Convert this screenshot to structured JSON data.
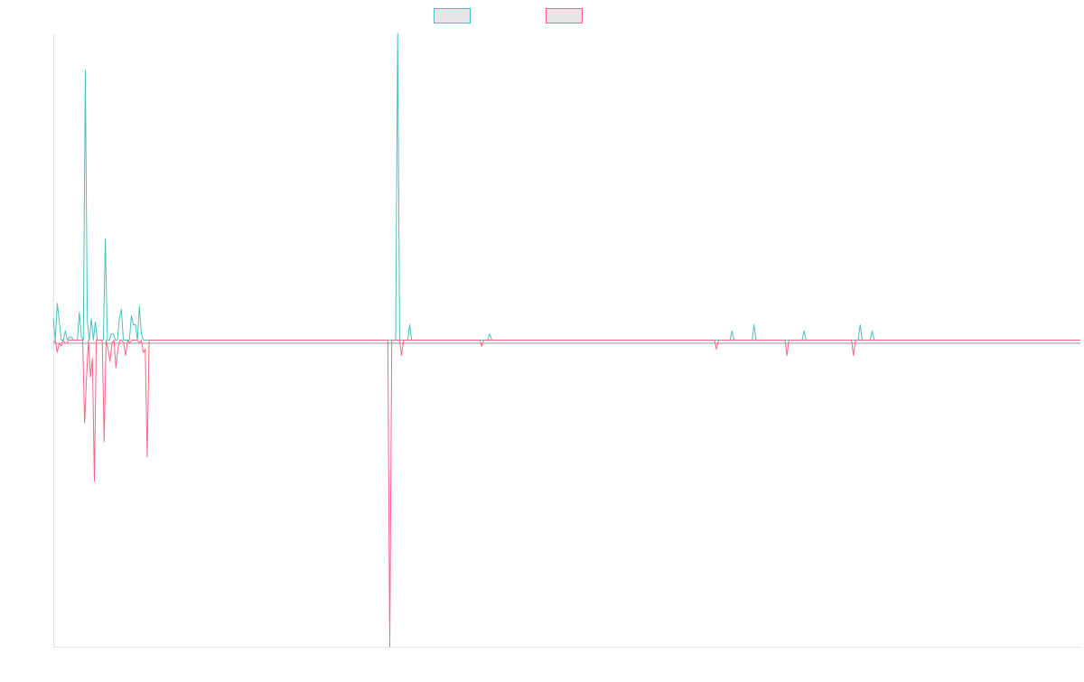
{
  "chart_data": {
    "type": "line",
    "title": "",
    "xlabel": "",
    "ylabel": "",
    "grid": false,
    "legend_position": "top-center",
    "ylim": [
      -1.0,
      1.0
    ],
    "colors": {
      "series_a": "#4bc0c0",
      "series_b": "#ff6384",
      "swatch_fill": "#e6e6e6",
      "axis": "#e4e4e4"
    },
    "series": [
      {
        "color": "#4bc0c0",
        "values": [
          0.07,
          0.0,
          0.12,
          0.06,
          0.0,
          0.0,
          0.03,
          0.0,
          0.01,
          0.01,
          0.0,
          0.0,
          0.0,
          0.09,
          0.01,
          0.0,
          0.88,
          0.06,
          0.0,
          0.07,
          0.0,
          0.06,
          0.0,
          0.0,
          0.0,
          0.0,
          0.33,
          0.0,
          0.0,
          0.02,
          0.02,
          0.0,
          0.0,
          0.07,
          0.1,
          0.0,
          0.0,
          0.0,
          0.0,
          0.08,
          0.05,
          0.05,
          0.0,
          0.11,
          0.02,
          0.0,
          0.0,
          0.0,
          0.0,
          0.0,
          0.0,
          0.0,
          0.0,
          0.0,
          0.0,
          0.0,
          0.0,
          0.0,
          0.0,
          0.0,
          0.0,
          0.0,
          0.0,
          0.0,
          0.0,
          0.0,
          0.0,
          0.0,
          0.0,
          0.0,
          0.0,
          0.0,
          0.0,
          0.0,
          0.0,
          0.0,
          0.0,
          0.0,
          0.0,
          0.0,
          0.0,
          0.0,
          0.0,
          0.0,
          0.0,
          0.0,
          0.0,
          0.0,
          0.0,
          0.0,
          0.0,
          0.0,
          0.0,
          0.0,
          0.0,
          0.0,
          0.0,
          0.0,
          0.0,
          0.0,
          0.0,
          0.0,
          0.0,
          0.0,
          0.0,
          0.0,
          0.0,
          0.0,
          0.0,
          0.0,
          0.0,
          0.0,
          0.0,
          0.0,
          0.0,
          0.0,
          0.0,
          0.0,
          0.0,
          0.0,
          0.0,
          0.0,
          0.0,
          0.0,
          0.0,
          0.0,
          0.0,
          0.0,
          0.0,
          0.0,
          0.0,
          0.0,
          0.0,
          0.0,
          0.0,
          0.0,
          0.0,
          0.0,
          0.0,
          0.0,
          0.0,
          0.0,
          0.0,
          0.0,
          0.0,
          0.0,
          0.0,
          0.0,
          0.0,
          0.0,
          0.0,
          0.0,
          0.0,
          0.0,
          0.0,
          0.0,
          0.0,
          0.0,
          0.0,
          0.0,
          0.0,
          0.0,
          0.0,
          0.0,
          0.0,
          0.0,
          0.0,
          0.0,
          0.0,
          0.0,
          0.0,
          0.0,
          0.0,
          0.0,
          0.0,
          0.0,
          0.0,
          0.0,
          0.0,
          0.0,
          0.0,
          0.0,
          0.0,
          0.0,
          0.0,
          0.0,
          0.0,
          0.0,
          0.0,
          0.0,
          0.0,
          0.0,
          0.0,
          0.0,
          0.0,
          0.0,
          0.0,
          0.0,
          0.0,
          0.0,
          0.0,
          0.0,
          0.0,
          0.0,
          0.0,
          0.0,
          0.0,
          0.0,
          0.0,
          0.0,
          0.0,
          0.0,
          0.0,
          0.0,
          0.0,
          0.0,
          0.0,
          0.0,
          0.0,
          0.0,
          0.0,
          0.0,
          0.0,
          0.0,
          0.0,
          0.0,
          0.0,
          0.0,
          0.0,
          0.0,
          0.0,
          0.0,
          0.0,
          0.0,
          0.0,
          0.0,
          0.0,
          0.0,
          0.0,
          0.0,
          0.0,
          0.0,
          0.0,
          0.0,
          0.0,
          0.0,
          0.0,
          0.0,
          0.0,
          0.0,
          0.0,
          0.0,
          0.0,
          0.0,
          0.0,
          0.0,
          0.0,
          0.0,
          0.0,
          0.0,
          0.0,
          0.0,
          0.0,
          0.0,
          0.0,
          0.0,
          0.0,
          0.0,
          0.0,
          0.0,
          0.0,
          0.0,
          0.0,
          0.0,
          0.0,
          0.0,
          0.0,
          0.0,
          0.0,
          0.0,
          0.0,
          0.0,
          0.0,
          0.0,
          0.0,
          0.0,
          0.0,
          0.0,
          0.0,
          0.0,
          0.0,
          0.0,
          0.0,
          0.0,
          0.0,
          0.0,
          0.0,
          0.0,
          0.0,
          0.0,
          0.0,
          0.0,
          0.0,
          0.0,
          0.0,
          0.0,
          0.0,
          0.0,
          0.0,
          0.0,
          0.0,
          0.0,
          0.0,
          0.0,
          0.0,
          0.0,
          0.0,
          0.0,
          0.0,
          0.0,
          0.0,
          0.0,
          0.0,
          0.0,
          0.0,
          0.0,
          0.0,
          0.0,
          0.0,
          0.0,
          0.0,
          0.0,
          0.0,
          0.0,
          0.0,
          0.0,
          0.0,
          0.0,
          0.0,
          0.0,
          0.0,
          0.0,
          0.0,
          0.0,
          0.0,
          0.0,
          0.0,
          0.0,
          0.0,
          0.0,
          0.0,
          0.0,
          0.0,
          0.0,
          0.0,
          0.0,
          0.0,
          0.0,
          0.0,
          0.0,
          0.0,
          0.0,
          0.0,
          0.0,
          0.0,
          0.0,
          0.0,
          0.0,
          0.0,
          0.0,
          0.0,
          0.0,
          0.0,
          0.0,
          0.0,
          0.0,
          0.0,
          0.0,
          0.0,
          0.0,
          0.0,
          0.0,
          0.0,
          0.0,
          0.0,
          0.0,
          0.0,
          0.0,
          0.0,
          0.0,
          0.0,
          0.0,
          0.0,
          0.0,
          0.0,
          0.0,
          0.0,
          0.0,
          0.0,
          0.0,
          0.0,
          0.0,
          0.0,
          0.0,
          0.0,
          0.0,
          0.0,
          0.0,
          0.0,
          0.0,
          0.0,
          0.0,
          0.0,
          0.0,
          0.0,
          0.0,
          0.0,
          0.0,
          0.0,
          0.0,
          0.0,
          0.0,
          0.0,
          0.0,
          0.0,
          0.0,
          0.0,
          0.0,
          0.0,
          0.0,
          0.0,
          0.0,
          0.0,
          0.0,
          0.0,
          0.0,
          0.0,
          0.0,
          0.0,
          0.0,
          0.0,
          0.0,
          0.0,
          0.0,
          0.0,
          0.0,
          0.0,
          0.0,
          0.0,
          0.0,
          0.0,
          0.0,
          0.0,
          0.0,
          0.0,
          0.0,
          0.0,
          0.0,
          0.0,
          0.0,
          0.0,
          0.0,
          0.0,
          0.0,
          0.0,
          0.0,
          0.0,
          0.0,
          0.0,
          0.0,
          0.0,
          0.0,
          0.0,
          0.0,
          0.0,
          0.0,
          0.0,
          0.0,
          0.0,
          0.0,
          0.0,
          0.0,
          0.0,
          0.0,
          0.0,
          0.0,
          0.0,
          0.0,
          0.0,
          0.0,
          0.0,
          0.0,
          0.0,
          0.0,
          0.0,
          0.0,
          0.0,
          0.0,
          0.0,
          0.0,
          0.0,
          0.0,
          0.0,
          0.0,
          0.0,
          0.0,
          0.0,
          0.0,
          0.0,
          0.0,
          0.0,
          0.0,
          0.0,
          0.0
        ]
      },
      {
        "color": "#ff6384",
        "values": [
          -0.01,
          0.0,
          -0.04,
          -0.01,
          -0.02,
          0.0,
          -0.01,
          -0.01,
          0.0,
          0.0,
          0.0,
          0.0,
          0.0,
          0.0,
          0.0,
          0.0,
          -0.27,
          -0.12,
          0.0,
          -0.12,
          -0.06,
          -0.46,
          0.0,
          0.0,
          0.0,
          0.0,
          -0.33,
          0.0,
          -0.03,
          -0.07,
          -0.01,
          0.0,
          -0.09,
          -0.03,
          0.0,
          0.0,
          -0.01,
          -0.05,
          0.0,
          -0.01,
          0.0,
          0.0,
          0.0,
          0.0,
          -0.01,
          0.0,
          -0.04,
          -0.03,
          -0.38,
          0.0,
          0.0,
          0.0,
          0.0,
          0.0,
          0.0,
          0.0,
          0.0,
          0.0,
          0.0,
          0.0,
          0.0,
          0.0,
          0.0,
          0.0,
          0.0,
          0.0,
          0.0,
          0.0,
          0.0,
          0.0,
          0.0,
          0.0,
          0.0,
          0.0,
          0.0,
          0.0,
          0.0,
          0.0,
          0.0,
          0.0,
          0.0,
          0.0,
          0.0,
          0.0,
          0.0,
          0.0,
          0.0,
          0.0,
          0.0,
          0.0,
          0.0,
          0.0,
          0.0,
          0.0,
          0.0,
          0.0,
          0.0,
          0.0,
          0.0,
          0.0,
          0.0,
          0.0,
          0.0,
          0.0,
          0.0,
          0.0,
          0.0,
          0.0,
          0.0,
          0.0,
          0.0,
          0.0,
          0.0,
          0.0,
          0.0,
          0.0,
          0.0,
          0.0,
          0.0,
          0.0,
          0.0,
          0.0,
          0.0,
          0.0,
          0.0,
          0.0,
          0.0,
          0.0,
          0.0,
          0.0,
          0.0,
          0.0,
          0.0,
          0.0,
          0.0,
          0.0,
          0.0,
          0.0,
          0.0,
          0.0,
          0.0,
          0.0,
          0.0,
          0.0,
          0.0,
          0.0,
          0.0,
          0.0,
          0.0,
          0.0,
          0.0,
          0.0,
          0.0,
          0.0,
          0.0,
          0.0,
          0.0,
          0.0,
          0.0,
          0.0,
          0.0,
          0.0,
          0.0,
          0.0,
          0.0,
          0.0,
          0.0,
          0.0,
          0.0,
          0.0,
          0.0,
          0.0,
          0.0,
          0.0,
          0.0,
          0.0,
          0.0,
          0.0,
          0.0,
          0.0,
          0.0,
          0.0,
          0.0,
          0.0,
          0.0,
          0.0,
          0.0,
          0.0,
          0.0,
          0.0,
          0.0,
          0.0,
          0.0,
          0.0,
          0.0,
          0.0,
          0.0,
          0.0,
          0.0,
          0.0,
          0.0,
          0.0,
          0.0,
          0.0,
          0.0,
          0.0,
          0.0,
          0.0,
          0.0,
          0.0,
          0.0,
          0.0,
          0.0,
          0.0,
          0.0,
          0.0,
          0.0,
          0.0,
          0.0,
          0.0,
          0.0,
          0.0,
          0.0,
          0.0,
          0.0,
          0.0,
          0.0,
          0.0,
          0.0,
          0.0,
          0.0,
          0.0,
          0.0,
          0.0,
          0.0,
          0.0,
          0.0,
          0.0,
          0.0,
          0.0,
          0.0,
          0.0,
          0.0,
          0.0,
          0.0,
          0.0,
          0.0,
          0.0,
          0.0,
          0.0,
          0.0,
          0.0,
          0.0,
          0.0,
          0.0,
          0.0,
          0.0,
          0.0,
          0.0,
          0.0,
          0.0,
          0.0,
          0.0,
          0.0,
          0.0,
          0.0,
          0.0,
          0.0,
          0.0,
          0.0,
          0.0,
          0.0,
          0.0,
          0.0,
          0.0,
          0.0,
          0.0,
          0.0,
          0.0,
          0.0,
          0.0,
          0.0,
          0.0,
          0.0,
          0.0,
          0.0,
          0.0,
          0.0,
          0.0,
          0.0,
          0.0,
          0.0,
          0.0,
          0.0,
          0.0,
          0.0,
          0.0,
          0.0,
          0.0,
          0.0,
          0.0,
          0.0,
          0.0,
          0.0,
          0.0,
          0.0,
          0.0,
          0.0,
          0.0,
          0.0,
          0.0,
          0.0,
          0.0,
          0.0,
          0.0,
          0.0,
          0.0,
          0.0,
          0.0,
          0.0,
          0.0,
          0.0,
          0.0,
          0.0,
          0.0,
          0.0,
          0.0,
          0.0,
          0.0,
          0.0,
          0.0,
          0.0,
          0.0,
          0.0,
          0.0,
          0.0,
          0.0,
          0.0,
          0.0,
          0.0,
          0.0,
          0.0,
          0.0,
          0.0,
          0.0,
          0.0,
          0.0,
          0.0,
          0.0,
          0.0,
          0.0,
          0.0,
          0.0,
          0.0,
          0.0,
          0.0,
          0.0,
          0.0,
          0.0,
          0.0,
          0.0,
          0.0,
          0.0,
          0.0,
          0.0,
          0.0,
          0.0,
          0.0,
          0.0,
          0.0,
          0.0,
          0.0,
          0.0,
          0.0,
          0.0,
          0.0,
          0.0,
          0.0,
          0.0,
          0.0,
          0.0,
          0.0,
          0.0,
          0.0,
          0.0,
          0.0,
          0.0,
          0.0,
          0.0,
          0.0,
          0.0,
          0.0,
          0.0,
          0.0,
          0.0,
          0.0,
          0.0,
          0.0,
          0.0,
          0.0,
          0.0,
          0.0,
          0.0,
          0.0,
          0.0,
          0.0,
          0.0,
          0.0,
          0.0,
          0.0,
          0.0,
          0.0,
          0.0,
          0.0,
          0.0,
          0.0,
          0.0,
          0.0,
          0.0,
          0.0,
          0.0,
          0.0,
          0.0,
          0.0,
          0.0,
          0.0,
          0.0,
          0.0,
          0.0,
          0.0,
          0.0,
          0.0,
          0.0,
          0.0,
          0.0,
          0.0,
          0.0,
          0.0,
          0.0,
          0.0,
          0.0,
          0.0,
          0.0,
          0.0,
          0.0,
          0.0,
          0.0,
          0.0,
          0.0,
          0.0,
          0.0,
          0.0,
          0.0,
          0.0,
          0.0,
          0.0,
          0.0,
          0.0,
          0.0,
          0.0,
          0.0,
          0.0,
          0.0,
          0.0,
          0.0,
          0.0,
          0.0,
          0.0,
          0.0,
          0.0,
          0.0,
          0.0,
          0.0,
          0.0,
          0.0,
          0.0,
          0.0,
          0.0,
          0.0,
          0.0,
          0.0,
          0.0,
          0.0,
          0.0,
          0.0,
          0.0,
          0.0,
          0.0,
          0.0,
          0.0,
          0.0,
          0.0,
          0.0,
          0.0,
          0.0,
          0.0,
          0.0,
          0.0,
          0.0,
          0.0,
          0.0,
          0.0,
          0.0,
          0.0,
          0.0,
          0.0,
          0.0,
          0.0,
          0.0,
          0.0,
          0.0,
          0.0,
          0.0,
          0.0,
          0.0,
          0.0,
          0.0,
          0.0,
          0.0,
          0.0,
          0.0,
          0.0,
          0.0,
          0.0,
          0.0,
          0.0
        ]
      }
    ],
    "spikes": [
      {
        "series": 0,
        "index": 172,
        "value": 1.0
      },
      {
        "series": 1,
        "index": 172,
        "value": -1.0
      },
      {
        "series": 0,
        "index": 178,
        "value": 0.05
      },
      {
        "series": 1,
        "index": 178,
        "value": -0.05
      },
      {
        "series": 0,
        "index": 218,
        "value": 0.02
      },
      {
        "series": 1,
        "index": 219,
        "value": -0.02
      },
      {
        "series": 0,
        "index": 339,
        "value": 0.03
      },
      {
        "series": 1,
        "index": 339,
        "value": -0.03
      },
      {
        "series": 0,
        "index": 350,
        "value": 0.05
      },
      {
        "series": 0,
        "index": 375,
        "value": 0.03
      },
      {
        "series": 1,
        "index": 375,
        "value": -0.05
      },
      {
        "series": 0,
        "index": 403,
        "value": 0.05
      },
      {
        "series": 0,
        "index": 409,
        "value": 0.03
      },
      {
        "series": 1,
        "index": 409,
        "value": -0.05
      }
    ]
  }
}
